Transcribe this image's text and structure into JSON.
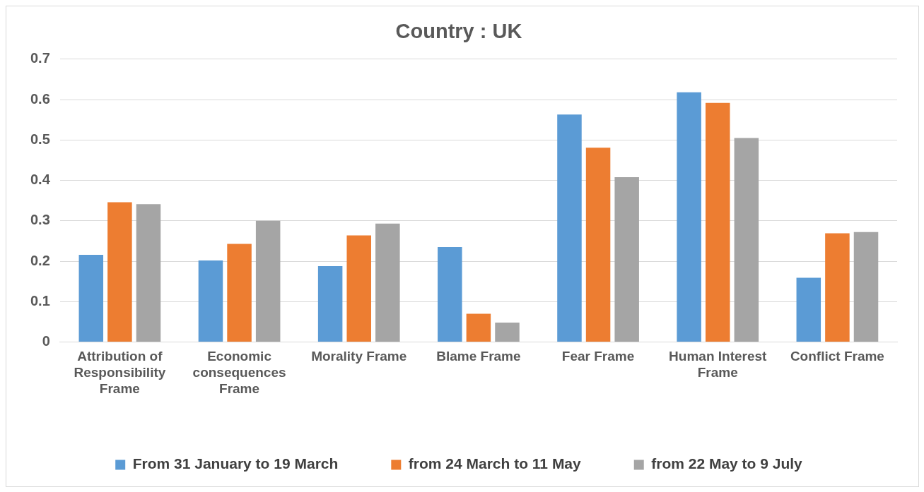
{
  "chart_data": {
    "type": "bar",
    "title": "Country : UK",
    "categories": [
      "Attribution of Responsibility Frame",
      "Economic consequences Frame",
      "Morality Frame",
      "Blame Frame",
      "Fear Frame",
      "Human Interest Frame",
      "Conflict Frame"
    ],
    "series": [
      {
        "name": "From 31 January to 19 March",
        "color": "#5b9bd5",
        "values": [
          0.216,
          0.202,
          0.188,
          0.235,
          0.563,
          0.618,
          0.159
        ]
      },
      {
        "name": "from 24 March to 11 May",
        "color": "#ed7d31",
        "values": [
          0.346,
          0.243,
          0.264,
          0.07,
          0.481,
          0.592,
          0.269
        ]
      },
      {
        "name": "from 22 May to 9 July",
        "color": "#a5a5a5",
        "values": [
          0.341,
          0.3,
          0.293,
          0.048,
          0.408,
          0.505,
          0.272
        ]
      }
    ],
    "ylim": [
      0,
      0.7
    ],
    "yticks": [
      0,
      0.1,
      0.2,
      0.3,
      0.4,
      0.5,
      0.6,
      0.7
    ],
    "grid": "y",
    "legend": "bottom"
  }
}
